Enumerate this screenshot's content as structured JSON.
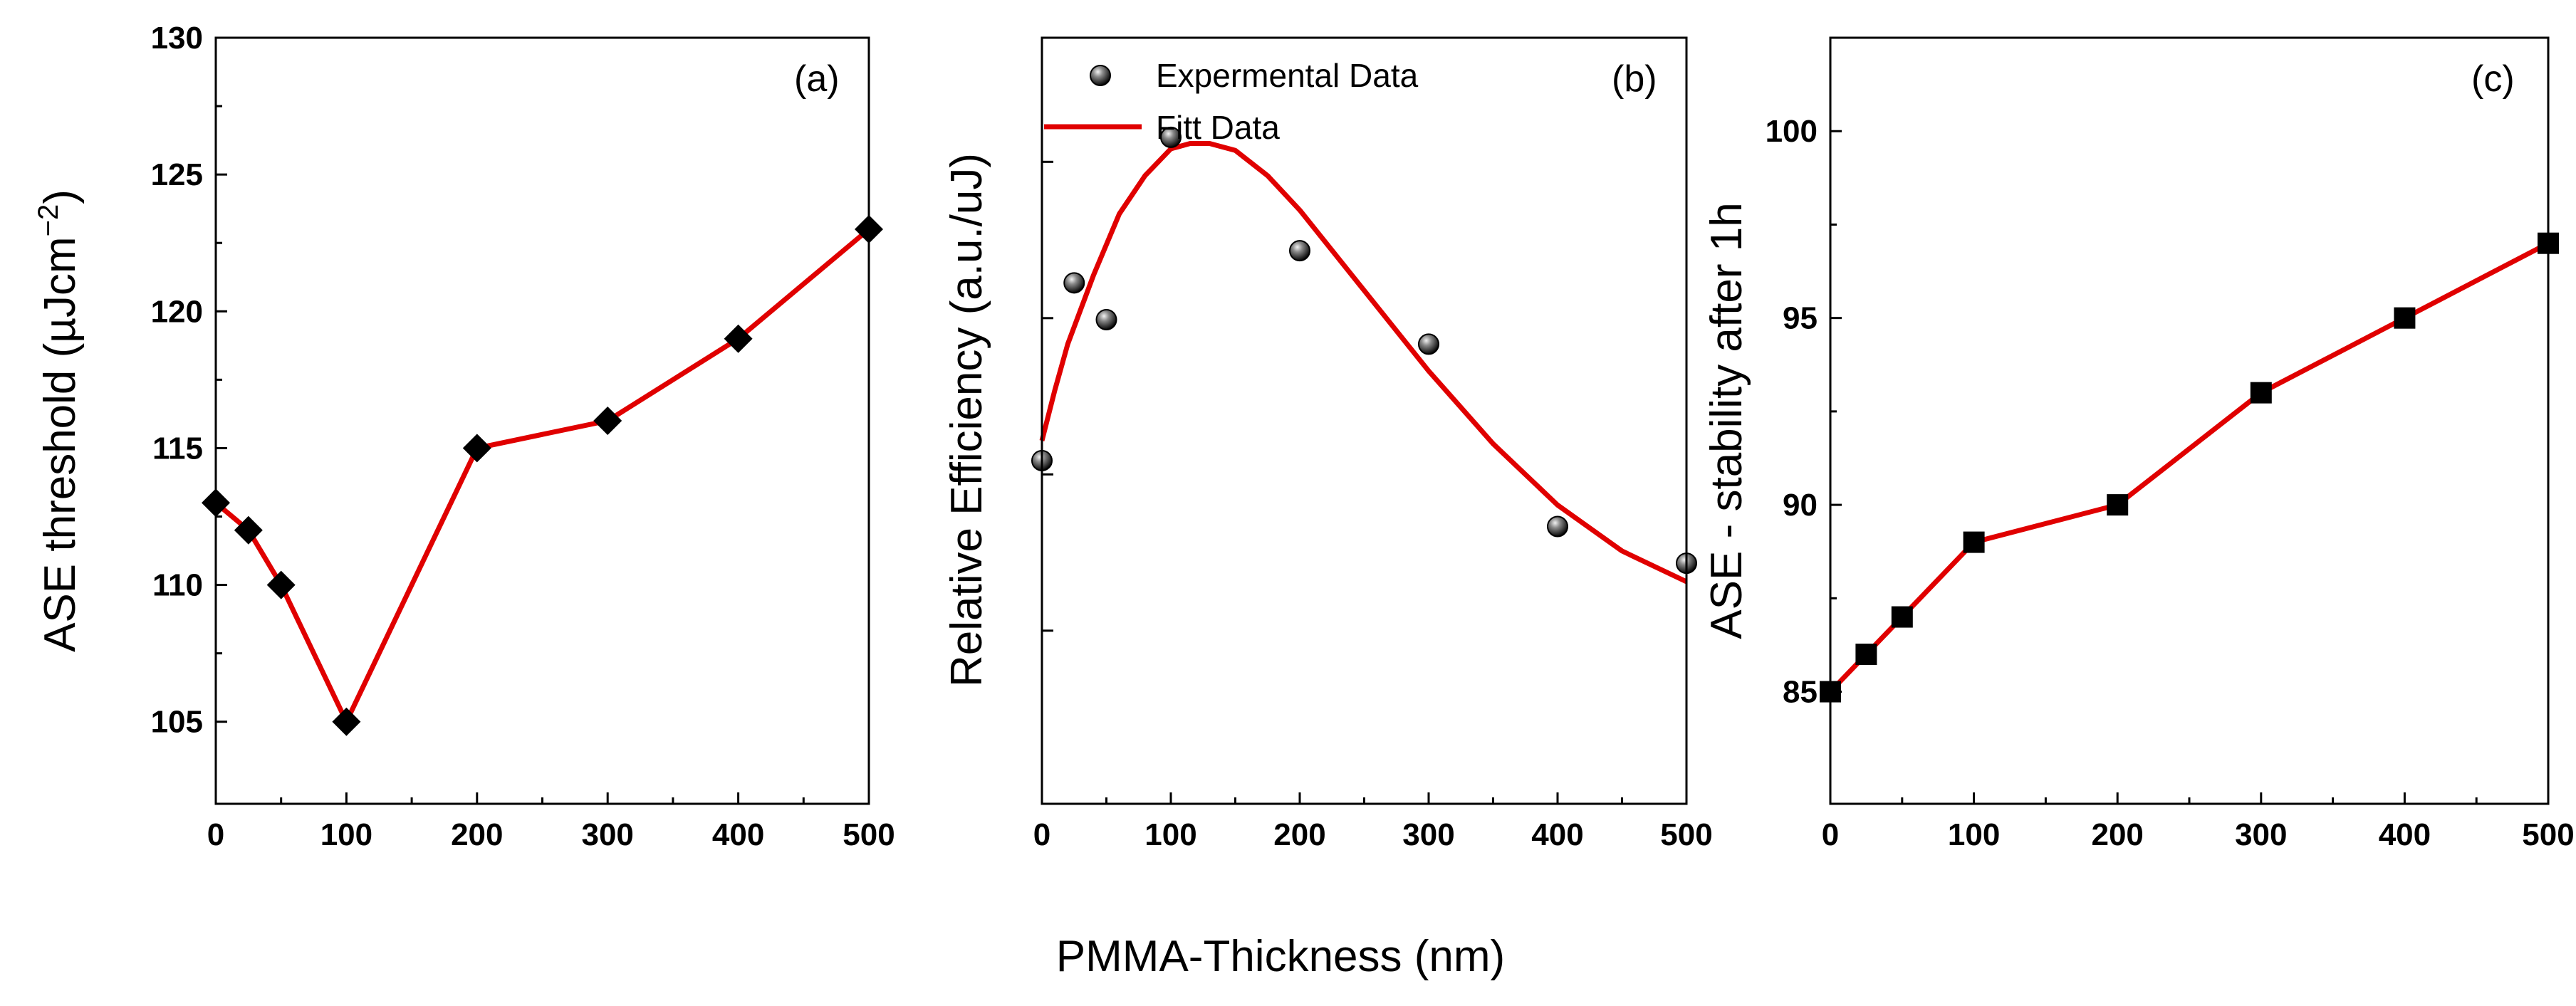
{
  "figure": {
    "shared_xlabel": "PMMA-Thickness (nm)"
  },
  "colors": {
    "line": "#e00000",
    "marker": "#000000"
  },
  "chart_data": [
    {
      "id": "a",
      "type": "line",
      "panel_label": "(a)",
      "ylabel": "ASE threshold (µJcm",
      "ylabel_sup": "−2",
      "ylabel_close": ")",
      "xlabel": "PMMA-Thickness (nm)",
      "xlim": [
        0,
        500
      ],
      "ylim": [
        102,
        130
      ],
      "xticks": [
        0,
        100,
        200,
        300,
        400,
        500
      ],
      "yticks": [
        105,
        110,
        115,
        120,
        125,
        130
      ],
      "marker": "diamond",
      "series": [
        {
          "name": "ASE threshold",
          "x": [
            0,
            25,
            50,
            100,
            200,
            300,
            400,
            500
          ],
          "y": [
            113,
            112,
            110,
            105,
            115,
            116,
            119,
            123
          ]
        }
      ]
    },
    {
      "id": "b",
      "type": "scatter",
      "panel_label": "(b)",
      "ylabel": "Relative Efficiency (a.u./uJ)",
      "xlabel": "PMMA-Thickness (nm)",
      "xlim": [
        0,
        500
      ],
      "ylim": [
        0,
        1
      ],
      "xticks": [
        0,
        100,
        200,
        300,
        400,
        500
      ],
      "yticks": [
        0.226,
        0.43,
        0.634,
        0.838
      ],
      "ytick_labels_shown": false,
      "legend": [
        {
          "label": "Expermental Data",
          "kind": "marker"
        },
        {
          "label": "Fitt Data",
          "kind": "line"
        }
      ],
      "series": [
        {
          "name": "Expermental Data",
          "kind": "scatter",
          "x": [
            0,
            25,
            50,
            100,
            200,
            300,
            400,
            500
          ],
          "y": [
            0.448,
            0.68,
            0.632,
            0.87,
            0.722,
            0.6,
            0.362,
            0.314
          ]
        },
        {
          "name": "Fitt Data",
          "kind": "line",
          "x": [
            0,
            10,
            20,
            40,
            60,
            80,
            100,
            115,
            130,
            150,
            175,
            200,
            250,
            300,
            350,
            400,
            450,
            500
          ],
          "y": [
            0.474,
            0.54,
            0.6,
            0.69,
            0.77,
            0.82,
            0.855,
            0.862,
            0.862,
            0.853,
            0.82,
            0.775,
            0.67,
            0.565,
            0.47,
            0.39,
            0.33,
            0.29
          ]
        }
      ]
    },
    {
      "id": "c",
      "type": "line",
      "panel_label": "(c)",
      "ylabel": "ASE - stability after 1h",
      "xlabel": "PMMA-Thickness (nm)",
      "xlim": [
        0,
        500
      ],
      "ylim": [
        82,
        102.5
      ],
      "xticks": [
        0,
        100,
        200,
        300,
        400,
        500
      ],
      "yticks": [
        85,
        90,
        95,
        100
      ],
      "marker": "square",
      "series": [
        {
          "name": "ASE stability",
          "x": [
            0,
            25,
            50,
            100,
            200,
            300,
            400,
            500
          ],
          "y": [
            85,
            86,
            87,
            89,
            90,
            93,
            95,
            97
          ]
        }
      ]
    }
  ]
}
